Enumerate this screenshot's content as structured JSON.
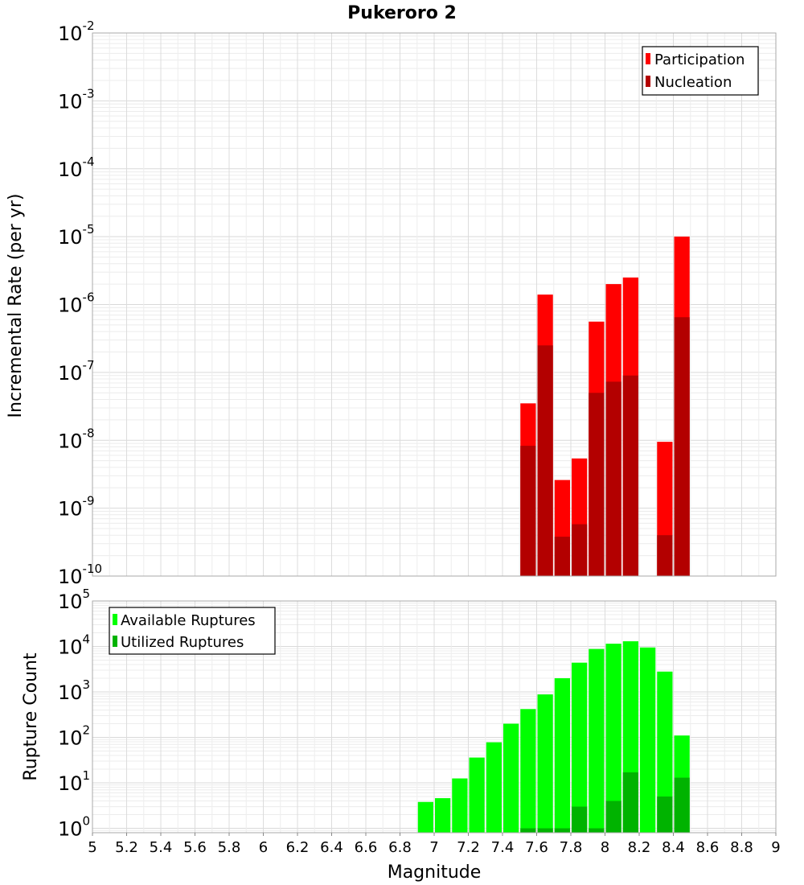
{
  "chart_data": [
    {
      "type": "bar",
      "title": "Pukeroro 2",
      "ylabel": "Incremental Rate (per yr)",
      "yscale": "log",
      "ylim": [
        1e-10,
        0.01
      ],
      "xlim": [
        5,
        9
      ],
      "bin_width": 0.1,
      "legend_position": "top-right",
      "grid": true,
      "series": [
        {
          "name": "Participation",
          "color": "#ff0000",
          "x": [
            7.55,
            7.65,
            7.75,
            7.85,
            7.95,
            8.05,
            8.15,
            8.35,
            8.45
          ],
          "values": [
            3.5e-08,
            1.4e-06,
            2.6e-09,
            5.4e-09,
            5.6e-07,
            2e-06,
            2.5e-06,
            9.5e-09,
            1e-05
          ]
        },
        {
          "name": "Nucleation",
          "color": "#b30000",
          "x": [
            7.55,
            7.65,
            7.75,
            7.85,
            7.95,
            8.05,
            8.15,
            8.35,
            8.45
          ],
          "values": [
            8.3e-09,
            2.5e-07,
            3.8e-10,
            5.8e-10,
            5e-08,
            7.3e-08,
            9e-08,
            4e-10,
            6.5e-07
          ]
        }
      ]
    },
    {
      "type": "bar",
      "xlabel": "Magnitude",
      "ylabel": "Rupture Count",
      "yscale": "log",
      "ylim": [
        0.8,
        100000.0
      ],
      "xlim": [
        5,
        9
      ],
      "bin_width": 0.1,
      "x_ticks": [
        "5",
        "5.2",
        "5.4",
        "5.6",
        "5.8",
        "6",
        "6.2",
        "6.4",
        "6.6",
        "6.8",
        "7",
        "7.2",
        "7.4",
        "7.6",
        "7.8",
        "8",
        "8.2",
        "8.4",
        "8.6",
        "8.8",
        "9"
      ],
      "legend_position": "top-left",
      "grid": true,
      "series": [
        {
          "name": "Available Ruptures",
          "color": "#00ff00",
          "x": [
            6.95,
            7.05,
            7.15,
            7.25,
            7.35,
            7.45,
            7.55,
            7.65,
            7.75,
            7.85,
            7.95,
            8.05,
            8.15,
            8.25,
            8.35,
            8.45
          ],
          "values": [
            3.8,
            4.6,
            12.5,
            36,
            78,
            200,
            420,
            880,
            2000,
            4400,
            8800,
            11500,
            13000,
            9500,
            2800,
            110
          ]
        },
        {
          "name": "Utilized Ruptures",
          "color": "#00b300",
          "x": [
            7.55,
            7.65,
            7.75,
            7.85,
            7.95,
            8.05,
            8.15,
            8.35,
            8.45
          ],
          "values": [
            1,
            1,
            1,
            3,
            1,
            4,
            17,
            5,
            13
          ]
        }
      ]
    }
  ],
  "y_tick_base": "10"
}
